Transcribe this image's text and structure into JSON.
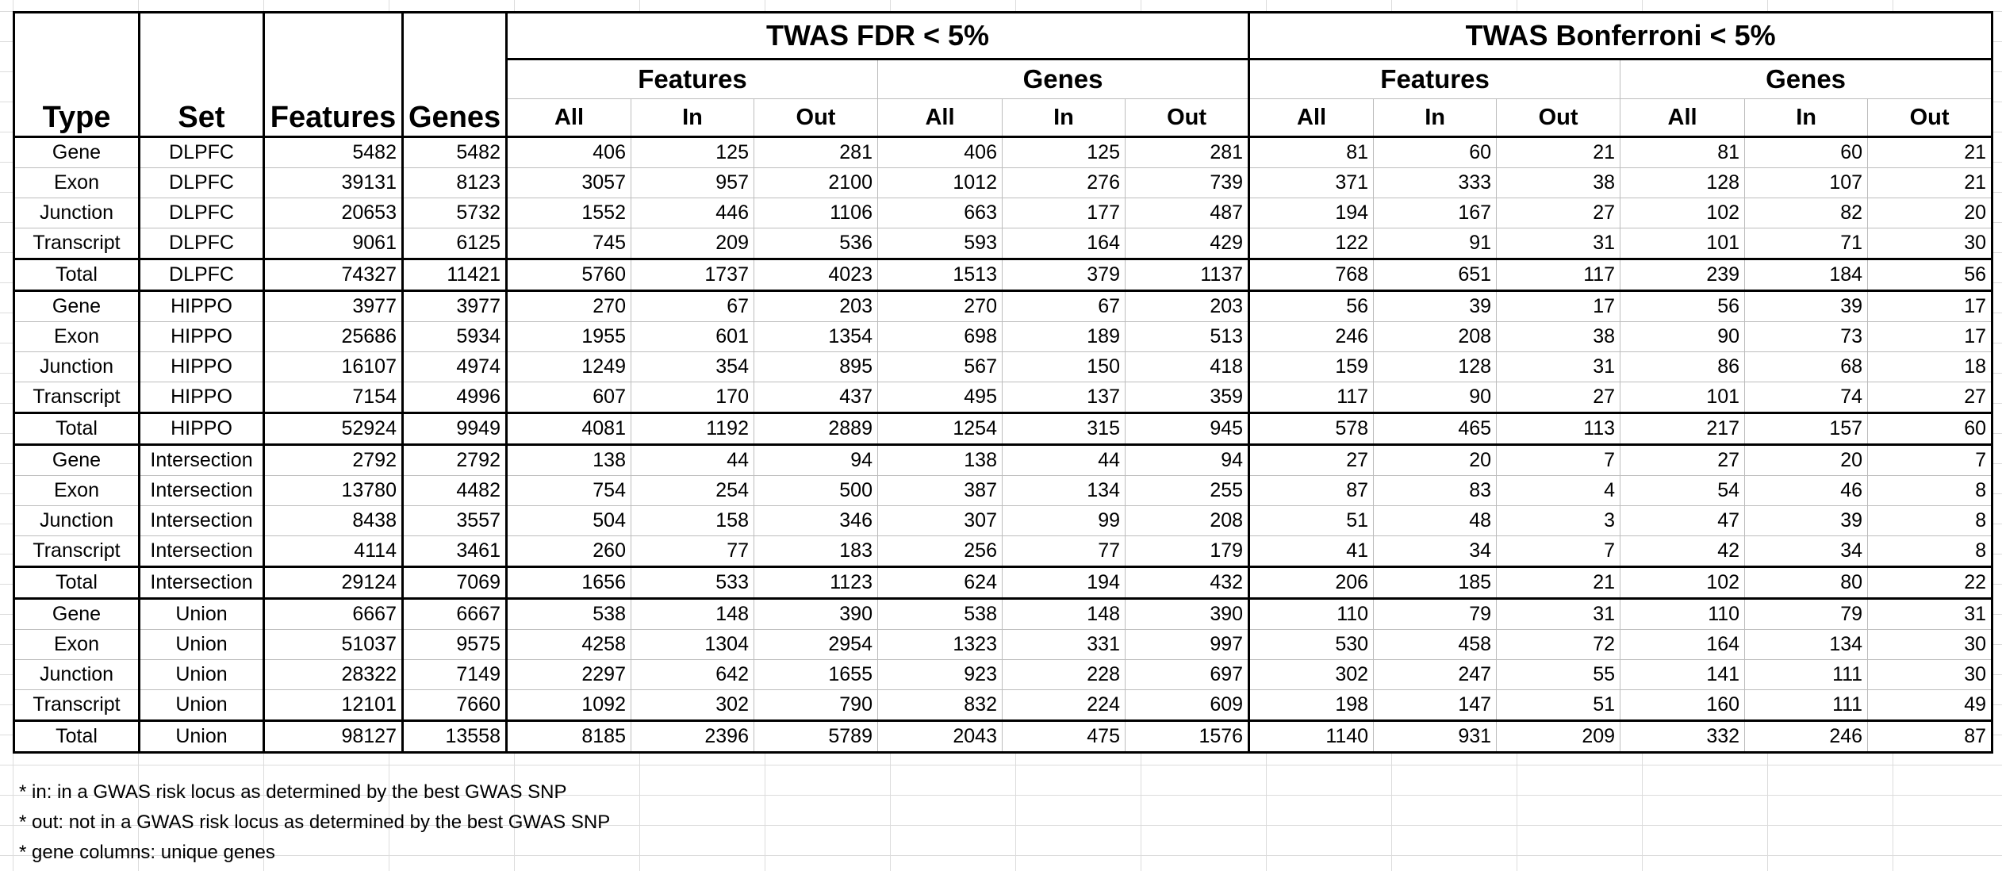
{
  "header": {
    "type": "Type",
    "set": "Set",
    "features": "Features",
    "genes": "Genes",
    "fdr_title": "TWAS FDR < 5%",
    "bonf_title": "TWAS Bonferroni < 5%",
    "sub_features": "Features",
    "sub_genes": "Genes",
    "all": "All",
    "in": "In",
    "out": "Out"
  },
  "rows": [
    [
      "Gene",
      "DLPFC",
      "5482",
      "5482",
      "406",
      "125",
      "281",
      "406",
      "125",
      "281",
      "81",
      "60",
      "21",
      "81",
      "60",
      "21"
    ],
    [
      "Exon",
      "DLPFC",
      "39131",
      "8123",
      "3057",
      "957",
      "2100",
      "1012",
      "276",
      "739",
      "371",
      "333",
      "38",
      "128",
      "107",
      "21"
    ],
    [
      "Junction",
      "DLPFC",
      "20653",
      "5732",
      "1552",
      "446",
      "1106",
      "663",
      "177",
      "487",
      "194",
      "167",
      "27",
      "102",
      "82",
      "20"
    ],
    [
      "Transcript",
      "DLPFC",
      "9061",
      "6125",
      "745",
      "209",
      "536",
      "593",
      "164",
      "429",
      "122",
      "91",
      "31",
      "101",
      "71",
      "30"
    ],
    [
      "Total",
      "DLPFC",
      "74327",
      "11421",
      "5760",
      "1737",
      "4023",
      "1513",
      "379",
      "1137",
      "768",
      "651",
      "117",
      "239",
      "184",
      "56"
    ],
    [
      "Gene",
      "HIPPO",
      "3977",
      "3977",
      "270",
      "67",
      "203",
      "270",
      "67",
      "203",
      "56",
      "39",
      "17",
      "56",
      "39",
      "17"
    ],
    [
      "Exon",
      "HIPPO",
      "25686",
      "5934",
      "1955",
      "601",
      "1354",
      "698",
      "189",
      "513",
      "246",
      "208",
      "38",
      "90",
      "73",
      "17"
    ],
    [
      "Junction",
      "HIPPO",
      "16107",
      "4974",
      "1249",
      "354",
      "895",
      "567",
      "150",
      "418",
      "159",
      "128",
      "31",
      "86",
      "68",
      "18"
    ],
    [
      "Transcript",
      "HIPPO",
      "7154",
      "4996",
      "607",
      "170",
      "437",
      "495",
      "137",
      "359",
      "117",
      "90",
      "27",
      "101",
      "74",
      "27"
    ],
    [
      "Total",
      "HIPPO",
      "52924",
      "9949",
      "4081",
      "1192",
      "2889",
      "1254",
      "315",
      "945",
      "578",
      "465",
      "113",
      "217",
      "157",
      "60"
    ],
    [
      "Gene",
      "Intersection",
      "2792",
      "2792",
      "138",
      "44",
      "94",
      "138",
      "44",
      "94",
      "27",
      "20",
      "7",
      "27",
      "20",
      "7"
    ],
    [
      "Exon",
      "Intersection",
      "13780",
      "4482",
      "754",
      "254",
      "500",
      "387",
      "134",
      "255",
      "87",
      "83",
      "4",
      "54",
      "46",
      "8"
    ],
    [
      "Junction",
      "Intersection",
      "8438",
      "3557",
      "504",
      "158",
      "346",
      "307",
      "99",
      "208",
      "51",
      "48",
      "3",
      "47",
      "39",
      "8"
    ],
    [
      "Transcript",
      "Intersection",
      "4114",
      "3461",
      "260",
      "77",
      "183",
      "256",
      "77",
      "179",
      "41",
      "34",
      "7",
      "42",
      "34",
      "8"
    ],
    [
      "Total",
      "Intersection",
      "29124",
      "7069",
      "1656",
      "533",
      "1123",
      "624",
      "194",
      "432",
      "206",
      "185",
      "21",
      "102",
      "80",
      "22"
    ],
    [
      "Gene",
      "Union",
      "6667",
      "6667",
      "538",
      "148",
      "390",
      "538",
      "148",
      "390",
      "110",
      "79",
      "31",
      "110",
      "79",
      "31"
    ],
    [
      "Exon",
      "Union",
      "51037",
      "9575",
      "4258",
      "1304",
      "2954",
      "1323",
      "331",
      "997",
      "530",
      "458",
      "72",
      "164",
      "134",
      "30"
    ],
    [
      "Junction",
      "Union",
      "28322",
      "7149",
      "2297",
      "642",
      "1655",
      "923",
      "228",
      "697",
      "302",
      "247",
      "55",
      "141",
      "111",
      "30"
    ],
    [
      "Transcript",
      "Union",
      "12101",
      "7660",
      "1092",
      "302",
      "790",
      "832",
      "224",
      "609",
      "198",
      "147",
      "51",
      "160",
      "111",
      "49"
    ],
    [
      "Total",
      "Union",
      "98127",
      "13558",
      "8185",
      "2396",
      "5789",
      "2043",
      "475",
      "1576",
      "1140",
      "931",
      "209",
      "332",
      "246",
      "87"
    ]
  ],
  "notes": [
    "* in: in a GWAS risk locus as determined by the best GWAS SNP",
    "* out: not in a GWAS risk locus as determined by the best GWAS SNP",
    "* gene columns: unique genes"
  ]
}
